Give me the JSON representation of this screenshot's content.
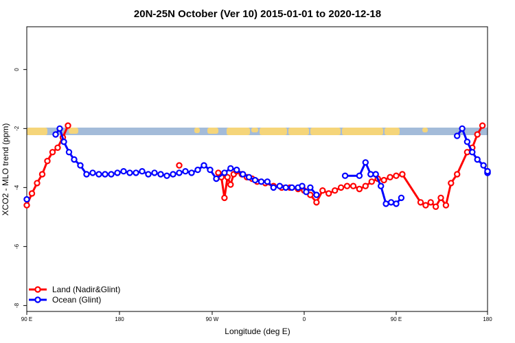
{
  "chart_data": {
    "type": "line",
    "title": "20N-25N October (Ver 10)   2015-01-01 to 2020-12-18",
    "xlabel": "Longitude (deg E)",
    "ylabel": "XCO2 - MLO trend (ppm)",
    "xlim": [
      90,
      450
    ],
    "ylim": [
      -8.2,
      1.45
    ],
    "x_ticks": [
      {
        "value": 90,
        "label": "90 E"
      },
      {
        "value": 180,
        "label": "180"
      },
      {
        "value": 270,
        "label": "90 W"
      },
      {
        "value": 360,
        "label": "0"
      },
      {
        "value": 450,
        "label": "90 E"
      },
      {
        "value": 540,
        "label": "180"
      }
    ],
    "y_ticks": [
      {
        "value": 0,
        "label": "0"
      },
      {
        "value": -2,
        "label": "-2"
      },
      {
        "value": -4,
        "label": "-4"
      },
      {
        "value": -6,
        "label": "-6"
      },
      {
        "value": -8,
        "label": "-8"
      }
    ],
    "x_unit_per_deg_scale": 0.5,
    "grid": false,
    "legend_position": "bottom-left",
    "colors": {
      "land": "#ff0000",
      "ocean": "#0000ff",
      "map_ocean": "#a3bbd9",
      "map_land": "#f5d57a"
    },
    "series": [
      {
        "name": "Land (Nadir&Glint)",
        "color": "#ff0000",
        "points": [
          [
            90,
            -4.6
          ],
          [
            92.5,
            -4.2
          ],
          [
            95,
            -3.85
          ],
          [
            97.5,
            -3.55
          ],
          [
            100,
            -3.1
          ],
          [
            102.5,
            -2.8
          ],
          [
            105,
            -2.65
          ],
          [
            107.5,
            -2.3
          ],
          [
            110,
            -1.9
          ],
          [
            164,
            -3.25
          ],
          [
            183,
            -3.5
          ],
          [
            184.5,
            -3.65
          ],
          [
            186,
            -4.35
          ],
          [
            187.5,
            -3.65
          ],
          [
            189,
            -3.9
          ],
          [
            190.5,
            -3.55
          ],
          [
            192,
            -3.45
          ],
          [
            194.5,
            -3.55
          ],
          [
            197,
            -3.65
          ],
          [
            199.5,
            -3.7
          ],
          [
            202,
            -3.8
          ],
          [
            206,
            -3.85
          ],
          [
            210,
            -3.95
          ],
          [
            214,
            -4.0
          ],
          [
            218,
            -4.0
          ],
          [
            222,
            -4.05
          ],
          [
            225,
            -4.1
          ],
          [
            228,
            -4.25
          ],
          [
            231,
            -4.5
          ],
          [
            234,
            -4.1
          ],
          [
            237,
            -4.2
          ],
          [
            240,
            -4.1
          ],
          [
            243,
            -4.0
          ],
          [
            246,
            -3.95
          ],
          [
            249,
            -3.95
          ],
          [
            252,
            -4.05
          ],
          [
            255,
            -3.95
          ],
          [
            258,
            -3.8
          ],
          [
            261,
            -3.7
          ],
          [
            264,
            -3.75
          ],
          [
            267,
            -3.65
          ],
          [
            270,
            -3.6
          ],
          [
            273,
            -3.55
          ],
          [
            282,
            -4.5
          ],
          [
            284.5,
            -4.6
          ],
          [
            287,
            -4.5
          ],
          [
            289.5,
            -4.65
          ],
          [
            292,
            -4.35
          ],
          [
            294.5,
            -4.6
          ],
          [
            297,
            -3.85
          ],
          [
            300,
            -3.55
          ],
          [
            305,
            -2.8
          ],
          [
            307.5,
            -2.65
          ],
          [
            310,
            -2.2
          ],
          [
            312.5,
            -1.9
          ]
        ]
      },
      {
        "name": "Ocean (Glint)",
        "color": "#0000ff",
        "points": [
          [
            90,
            -4.4
          ],
          [
            104,
            -2.2
          ],
          [
            106,
            -2.0
          ],
          [
            108,
            -2.45
          ],
          [
            110.5,
            -2.8
          ],
          [
            113,
            -3.05
          ],
          [
            116,
            -3.25
          ],
          [
            119,
            -3.55
          ],
          [
            122,
            -3.5
          ],
          [
            125,
            -3.55
          ],
          [
            128,
            -3.55
          ],
          [
            131,
            -3.55
          ],
          [
            134,
            -3.5
          ],
          [
            137,
            -3.45
          ],
          [
            140,
            -3.5
          ],
          [
            143,
            -3.5
          ],
          [
            146,
            -3.45
          ],
          [
            149,
            -3.55
          ],
          [
            152,
            -3.5
          ],
          [
            155,
            -3.55
          ],
          [
            158,
            -3.6
          ],
          [
            161,
            -3.55
          ],
          [
            164,
            -3.5
          ],
          [
            167,
            -3.45
          ],
          [
            170,
            -3.5
          ],
          [
            173,
            -3.4
          ],
          [
            176,
            -3.25
          ],
          [
            179,
            -3.4
          ],
          [
            182,
            -3.7
          ],
          [
            186,
            -3.5
          ],
          [
            189,
            -3.35
          ],
          [
            192,
            -3.4
          ],
          [
            195,
            -3.55
          ],
          [
            198,
            -3.65
          ],
          [
            201,
            -3.75
          ],
          [
            204,
            -3.8
          ],
          [
            207,
            -3.8
          ],
          [
            210,
            -4.0
          ],
          [
            213,
            -3.95
          ],
          [
            216,
            -4.0
          ],
          [
            219,
            -4.0
          ],
          [
            222,
            -4.0
          ],
          [
            224,
            -3.95
          ],
          [
            226,
            -4.15
          ],
          [
            228,
            -4.0
          ],
          [
            231,
            -4.25
          ],
          [
            245,
            -3.6
          ],
          [
            252,
            -3.6
          ],
          [
            255,
            -3.15
          ],
          [
            257.5,
            -3.55
          ],
          [
            260,
            -3.55
          ],
          [
            262.5,
            -3.95
          ],
          [
            265,
            -4.55
          ],
          [
            267.5,
            -4.5
          ],
          [
            270,
            -4.55
          ],
          [
            272.5,
            -4.35
          ],
          [
            300,
            -2.25
          ],
          [
            302.5,
            -2.0
          ],
          [
            305,
            -2.45
          ],
          [
            307.5,
            -2.8
          ],
          [
            310,
            -3.05
          ],
          [
            313,
            -3.25
          ],
          [
            316,
            -3.5
          ],
          [
            319,
            -3.45
          ],
          [
            322,
            -3.5
          ],
          [
            325,
            -3.5
          ],
          [
            328,
            -3.5
          ],
          [
            331,
            -3.45
          ],
          [
            334,
            -3.45
          ]
        ]
      }
    ]
  }
}
